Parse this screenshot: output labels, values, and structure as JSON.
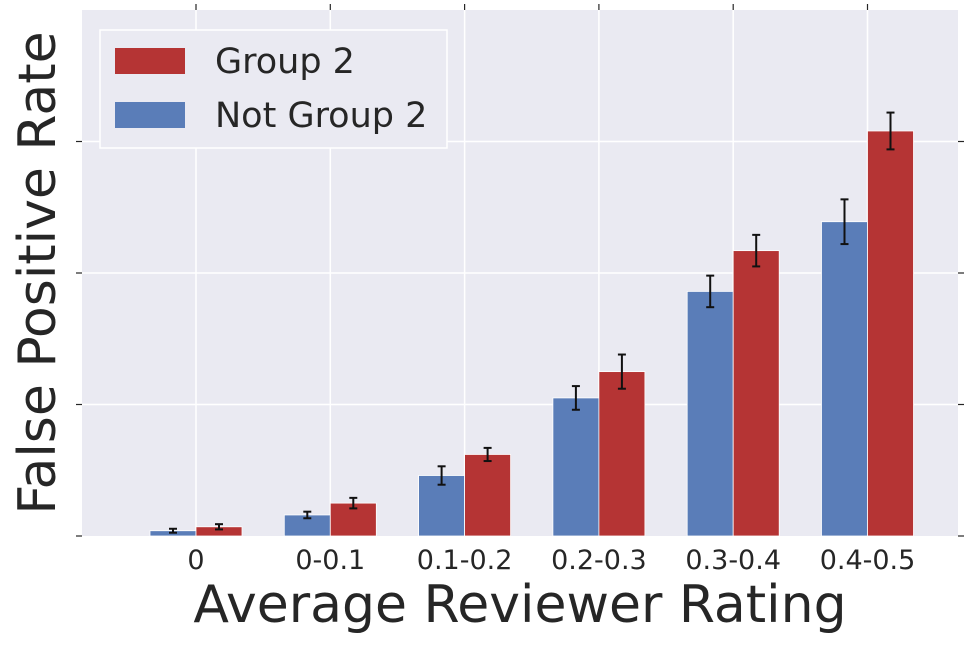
{
  "chart_data": {
    "type": "bar",
    "title": "",
    "xlabel": "Average Reviewer Rating",
    "ylabel": "False Positive Rate",
    "categories": [
      "0",
      "0-0.1",
      "0.1-0.2",
      "0.2-0.3",
      "0.3-0.4",
      "0.4-0.5"
    ],
    "ylim": [
      0,
      4
    ],
    "y_tick_labels_shown": false,
    "grid": true,
    "legend_position": "top-left",
    "series": [
      {
        "name": "Not Group 2",
        "color": "#5a7db8",
        "values": [
          0.04,
          0.16,
          0.46,
          1.05,
          1.86,
          2.39
        ],
        "error": [
          0.015,
          0.025,
          0.07,
          0.09,
          0.12,
          0.17
        ]
      },
      {
        "name": "Group 2",
        "color": "#b53434",
        "values": [
          0.07,
          0.25,
          0.62,
          1.25,
          2.17,
          3.08
        ],
        "error": [
          0.02,
          0.04,
          0.05,
          0.13,
          0.12,
          0.14
        ]
      }
    ],
    "legend_order": [
      "Group 2",
      "Not Group 2"
    ]
  }
}
